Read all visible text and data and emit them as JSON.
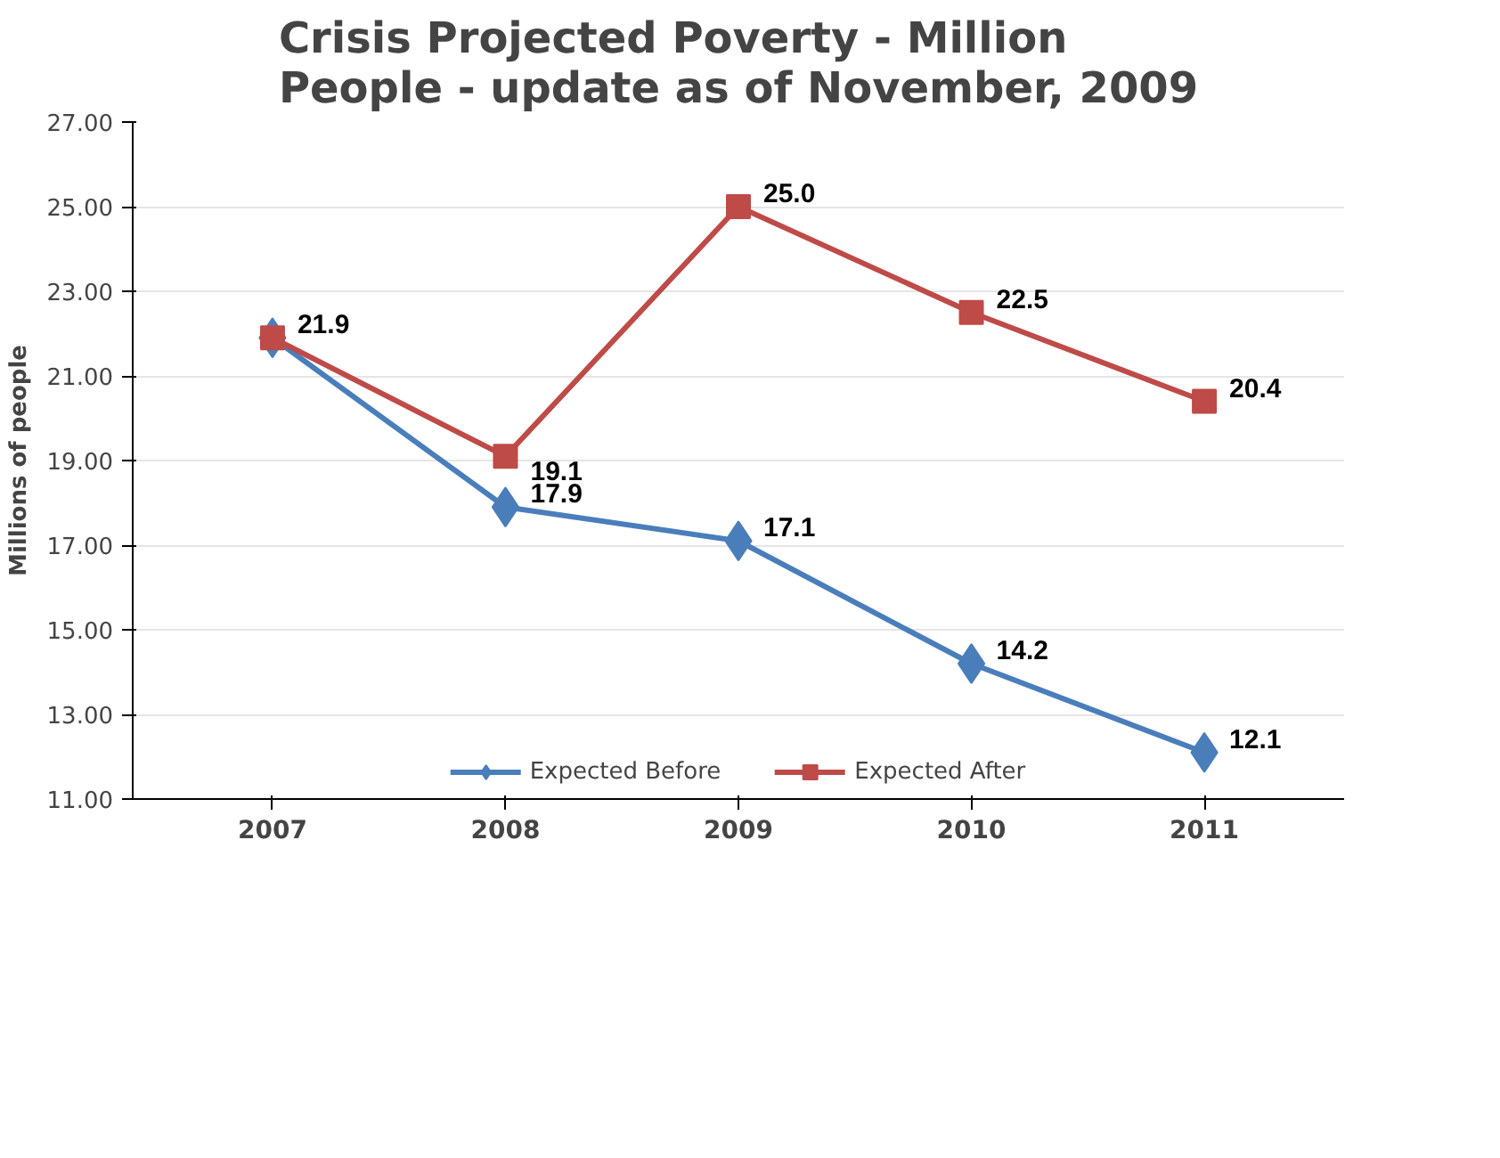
{
  "chart_data": {
    "type": "line",
    "title": "Crisis Projected Poverty - Million People - update as of November, 2009",
    "ylabel": "Millions of people",
    "categories": [
      "2007",
      "2008",
      "2009",
      "2010",
      "2011"
    ],
    "series": [
      {
        "name": "Expected Before",
        "color": "#4a7ebb",
        "marker": "diamond",
        "values": [
          21.9,
          17.9,
          17.1,
          14.2,
          12.1
        ],
        "value_labels": [
          null,
          "17.9",
          "17.1",
          "14.2",
          "12.1"
        ]
      },
      {
        "name": "Expected After",
        "color": "#be4b48",
        "marker": "square",
        "values": [
          21.9,
          19.1,
          25.0,
          22.5,
          20.4
        ],
        "value_labels": [
          "21.9",
          "19.1",
          "25.0",
          "22.5",
          "20.4"
        ]
      }
    ],
    "ylim": [
      11,
      27
    ],
    "yticks": [
      {
        "value": 11,
        "label": "11.00"
      },
      {
        "value": 13,
        "label": "13.00"
      },
      {
        "value": 15,
        "label": "15.00"
      },
      {
        "value": 17,
        "label": "17.00"
      },
      {
        "value": 19,
        "label": "19.00"
      },
      {
        "value": 21,
        "label": "21.00"
      },
      {
        "value": 23,
        "label": "23.00"
      },
      {
        "value": 25,
        "label": "25.00"
      },
      {
        "value": 27,
        "label": "27.00"
      }
    ],
    "grid": "y",
    "legend": "bottom",
    "line_style": "solid"
  }
}
